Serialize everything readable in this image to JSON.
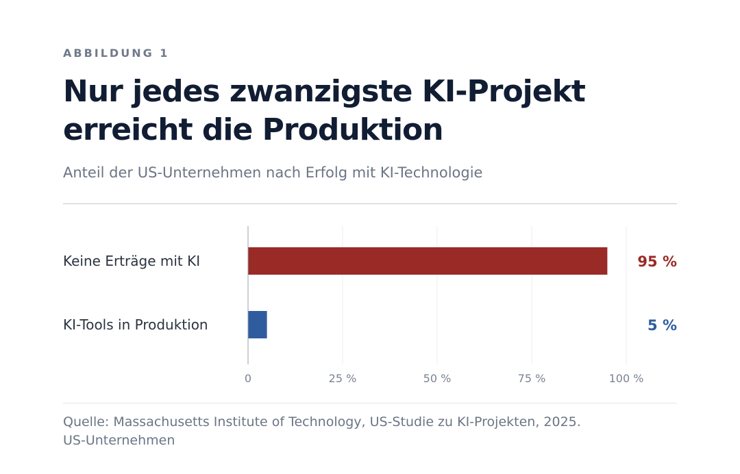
{
  "header": {
    "eyebrow": "ABBILDUNG 1",
    "title": "Nur jedes zwanzigste KI-Projekt erreicht die Produktion",
    "subtitle": "Anteil der US-Unternehmen nach Erfolg mit KI-Technologie"
  },
  "chart_data": {
    "type": "bar",
    "orientation": "horizontal",
    "categories": [
      "Keine Erträge mit KI",
      "KI-Tools in Produktion"
    ],
    "values": [
      95,
      5
    ],
    "value_labels": [
      "95 %",
      "5 %"
    ],
    "colors": [
      "#9a2a26",
      "#2f5c9e"
    ],
    "xlim": [
      0,
      100
    ],
    "x_ticks": [
      0,
      25,
      50,
      75,
      100
    ],
    "x_tick_labels": [
      "0",
      "25 %",
      "50 %",
      "75 %",
      "100 %"
    ],
    "grid": true,
    "title": "Nur jedes zwanzigste KI-Projekt erreicht die Produktion",
    "subtitle": "Anteil der US-Unternehmen nach Erfolg mit KI-Technologie"
  },
  "footer": {
    "source_line1": "Quelle: Massachusetts Institute of Technology, US-Studie zu KI-Projekten, 2025.",
    "source_line2": "US-Unternehmen"
  }
}
